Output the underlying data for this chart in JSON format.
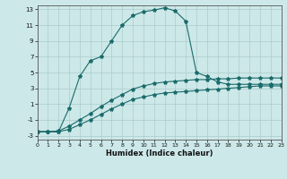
{
  "xlabel": "Humidex (Indice chaleur)",
  "xlim": [
    0,
    23
  ],
  "ylim": [
    -3.5,
    13.5
  ],
  "xticks": [
    0,
    1,
    2,
    3,
    4,
    5,
    6,
    7,
    8,
    9,
    10,
    11,
    12,
    13,
    14,
    15,
    16,
    17,
    18,
    19,
    20,
    21,
    22,
    23
  ],
  "yticks": [
    -3,
    -1,
    1,
    3,
    5,
    7,
    9,
    11,
    13
  ],
  "background_color": "#cde8e8",
  "grid_color": "#aacccc",
  "line_color": "#1a6b6b",
  "line1_x": [
    0,
    1,
    2,
    3,
    4,
    5,
    6,
    7,
    8,
    9,
    10,
    11,
    12,
    13,
    14,
    15,
    16,
    17,
    18,
    19,
    20,
    21,
    22,
    23
  ],
  "line1_y": [
    -2.5,
    -2.5,
    -2.5,
    -2.2,
    -1.6,
    -1.0,
    -0.3,
    0.4,
    1.0,
    1.6,
    1.9,
    2.2,
    2.4,
    2.5,
    2.6,
    2.7,
    2.8,
    2.9,
    3.0,
    3.1,
    3.2,
    3.3,
    3.3,
    3.3
  ],
  "line2_x": [
    0,
    1,
    2,
    3,
    4,
    5,
    6,
    7,
    8,
    9,
    10,
    11,
    12,
    13,
    14,
    15,
    16,
    17,
    18,
    19,
    20,
    21,
    22,
    23
  ],
  "line2_y": [
    -2.5,
    -2.5,
    -2.4,
    -1.8,
    -1.0,
    -0.2,
    0.7,
    1.5,
    2.2,
    2.9,
    3.3,
    3.6,
    3.8,
    3.9,
    4.0,
    4.1,
    4.1,
    4.2,
    4.2,
    4.3,
    4.3,
    4.3,
    4.3,
    4.3
  ],
  "line3_x": [
    0,
    1,
    2,
    3,
    4,
    5,
    6,
    7,
    8,
    9,
    10,
    11,
    12,
    13,
    14,
    15,
    16,
    17,
    18,
    19,
    20,
    21,
    22,
    23
  ],
  "line3_y": [
    -2.5,
    -2.5,
    -2.5,
    0.5,
    4.5,
    6.5,
    7.0,
    9.0,
    11.0,
    12.2,
    12.7,
    12.9,
    13.2,
    12.8,
    11.5,
    5.0,
    4.5,
    3.8,
    3.5,
    3.5,
    3.5,
    3.5,
    3.5,
    3.5
  ]
}
